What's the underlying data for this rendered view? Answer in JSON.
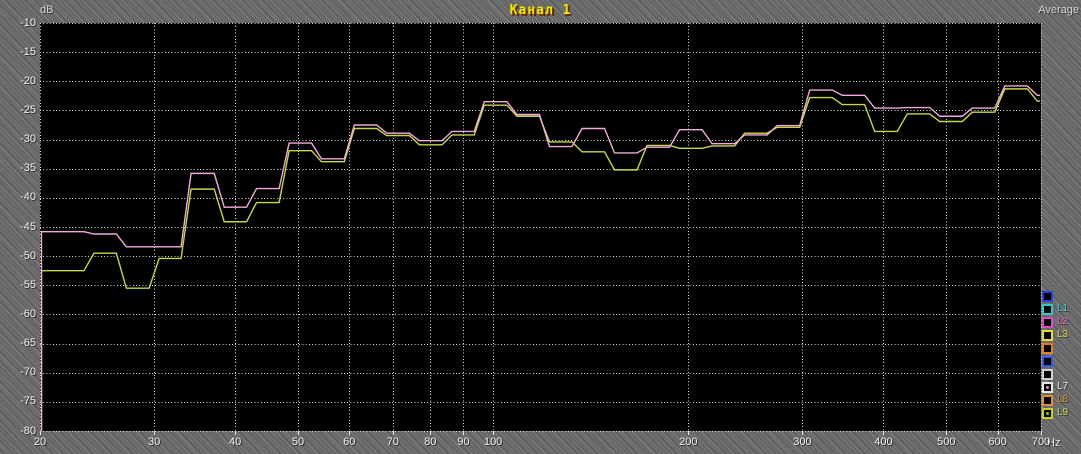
{
  "header": {
    "y_unit": "dB",
    "title": "Канал 1",
    "mode": "Average",
    "x_unit": "Hz"
  },
  "colors": {
    "plot_background": "#000000",
    "grid": "#c9dcc9",
    "panel_gray": "#6b6b6b",
    "title_yellow": "#e9e900",
    "trace_l7_pink": "#f0abda",
    "trace_l9_yellow": "#c9d549",
    "tick_text": "#f2f2f2"
  },
  "axes": {
    "y_ticks": [
      -10,
      -15,
      -20,
      -25,
      -30,
      -35,
      -40,
      -45,
      -50,
      -55,
      -60,
      -65,
      -70,
      -75,
      -80
    ],
    "x_ticks": [
      20,
      30,
      40,
      50,
      60,
      70,
      80,
      90,
      100,
      200,
      300,
      400,
      500,
      600,
      700
    ]
  },
  "legend": {
    "items": [
      {
        "id": "L0",
        "label": "",
        "border": "#2840d8",
        "label_color": "#2840d8",
        "dot": null,
        "enabled": false
      },
      {
        "id": "L1",
        "label": "L1",
        "border": "#30c8c8",
        "label_color": "#3cd2d2",
        "dot": null,
        "enabled": false
      },
      {
        "id": "L2",
        "label": "L2",
        "border": "#e048c8",
        "label_color": "#f060d0",
        "dot": null,
        "enabled": false
      },
      {
        "id": "L3",
        "label": "L3",
        "border": "#e8d848",
        "label_color": "#d8d850",
        "dot": null,
        "enabled": false
      },
      {
        "id": "L4",
        "label": "",
        "border": "#e08028",
        "label_color": "#e08028",
        "dot": null,
        "enabled": false
      },
      {
        "id": "L5",
        "label": "",
        "border": "#3858e8",
        "label_color": "#3858e8",
        "dot": null,
        "enabled": false
      },
      {
        "id": "L6",
        "label": "",
        "border": "#d0d0d0",
        "label_color": "#d0d0d0",
        "dot": null,
        "enabled": false
      },
      {
        "id": "L7",
        "label": "L7",
        "border": "#e8e8e8",
        "label_color": "#e8e8e8",
        "dot": "#ff84d8",
        "enabled": true
      },
      {
        "id": "L8",
        "label": "L8",
        "border": "#e09030",
        "label_color": "#e09030",
        "dot": null,
        "enabled": false
      },
      {
        "id": "L9",
        "label": "L9",
        "border": "#c8d028",
        "label_color": "#c8d850",
        "dot": "#90d800",
        "enabled": true
      }
    ]
  },
  "chart_data": {
    "type": "line",
    "subtype": "stepped-spectrum",
    "title": "Канал 1",
    "averaging_mode": "Average",
    "xlabel": "Hz",
    "ylabel": "dB",
    "x_scale": "log",
    "xlim": [
      20,
      700
    ],
    "ylim": [
      -80,
      -10
    ],
    "grid": true,
    "legend_position": "right",
    "band_centers_hz": [
      21.2,
      23.8,
      26.7,
      30,
      33.6,
      37.8,
      42.4,
      47.6,
      53.4,
      60,
      67.3,
      75.6,
      84.9,
      95.2,
      106.9,
      120,
      134.7,
      151.2,
      169.7,
      190.5,
      213.8,
      240,
      269.4,
      302.4,
      339.4,
      380.9,
      427.6,
      480,
      538.7,
      604.7,
      678.7
    ],
    "series": [
      {
        "name": "L7",
        "color": "#f0abda",
        "values_db": [
          -45.8,
          -46.2,
          -48.4,
          -48.4,
          -35.8,
          -41.6,
          -38.4,
          -30.6,
          -33.3,
          -27.5,
          -28.9,
          -30.2,
          -28.6,
          -23.5,
          -25.7,
          -31.2,
          -28.1,
          -32.3,
          -31.3,
          -28.3,
          -30.7,
          -29.2,
          -27.6,
          -21.5,
          -22.4,
          -24.6,
          -24.5,
          -26.0,
          -24.6,
          -20.8,
          -22.4
        ]
      },
      {
        "name": "L9",
        "color": "#c9d549",
        "values_db": [
          -52.5,
          -49.5,
          -55.5,
          -50.4,
          -38.5,
          -44.1,
          -40.8,
          -31.9,
          -33.8,
          -28.1,
          -29.3,
          -30.9,
          -29.2,
          -24.1,
          -26.0,
          -30.4,
          -32.1,
          -35.2,
          -31.0,
          -31.5,
          -31.1,
          -28.9,
          -27.9,
          -22.8,
          -24.0,
          -28.6,
          -25.6,
          -26.9,
          -25.3,
          -21.3,
          -23.4
        ]
      }
    ]
  }
}
